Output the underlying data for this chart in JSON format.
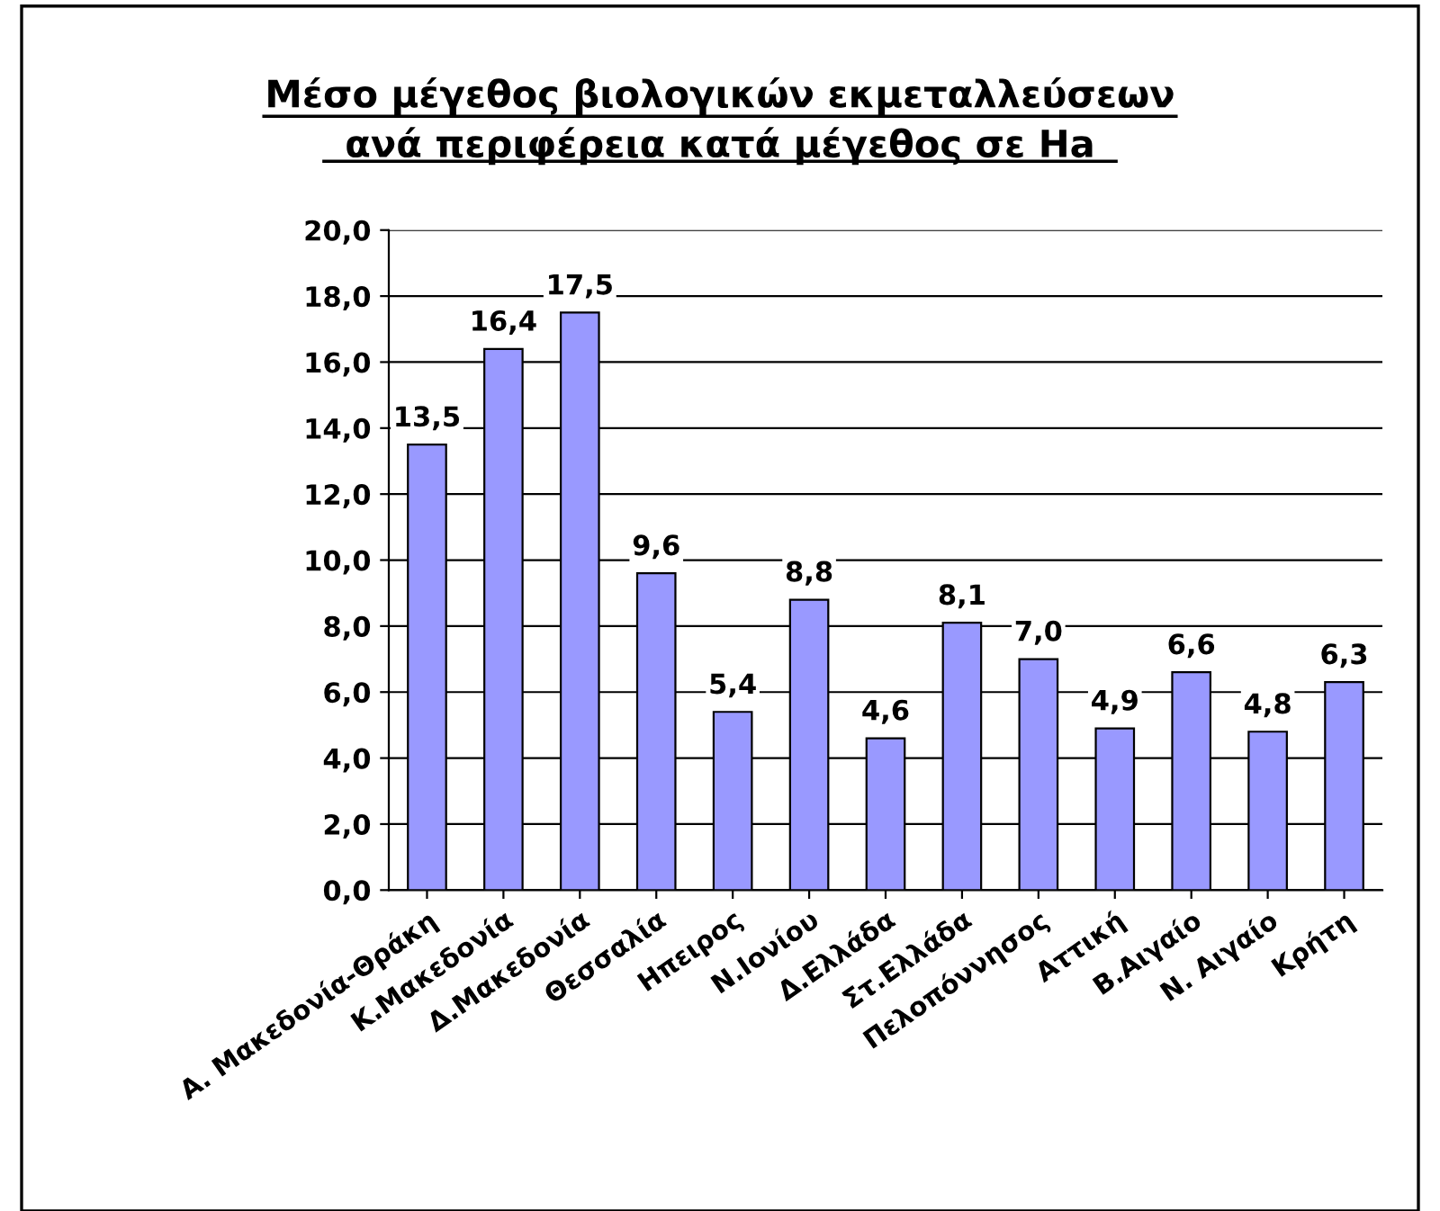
{
  "chart_data": {
    "type": "bar",
    "title": "Μέσο μέγεθος βιολογικών εκμεταλλεύσεων\nανά περιφέρεια κατά μέγεθος σε Ha",
    "categories": [
      "Α. Μακεδονία-Θράκη",
      "Κ.Μακεδονία",
      "Δ.Μακεδονία",
      "Θεσσαλία",
      "Ηπειρος",
      "Ν.Ιονίου",
      "Δ.Ελλάδα",
      "Στ.Ελλάδα",
      "Πελοπόννησος",
      "Αττική",
      "Β.Αιγαίο",
      "Ν. Αιγαίο",
      "Κρήτη"
    ],
    "values": [
      13.5,
      16.4,
      17.5,
      9.6,
      5.4,
      8.8,
      4.6,
      8.1,
      7.0,
      4.9,
      6.6,
      4.8,
      6.3
    ],
    "value_labels": [
      "13,5",
      "16,4",
      "17,5",
      "9,6",
      "5,4",
      "8,8",
      "4,6",
      "8,1",
      "7,0",
      "4,9",
      "6,6",
      "4,8",
      "6,3"
    ],
    "color": "#9999ff",
    "ylim": [
      0,
      20
    ],
    "yticks": [
      {
        "value": 0,
        "label": "0,0"
      },
      {
        "value": 2,
        "label": "2,0"
      },
      {
        "value": 4,
        "label": "4,0"
      },
      {
        "value": 6,
        "label": "6,0"
      },
      {
        "value": 8,
        "label": "8,0"
      },
      {
        "value": 10,
        "label": "10,0"
      },
      {
        "value": 12,
        "label": "12,0"
      },
      {
        "value": 14,
        "label": "14,0"
      },
      {
        "value": 16,
        "label": "16,0"
      },
      {
        "value": 18,
        "label": "18,0"
      },
      {
        "value": 20,
        "label": "20,0"
      }
    ],
    "grid": "y"
  }
}
